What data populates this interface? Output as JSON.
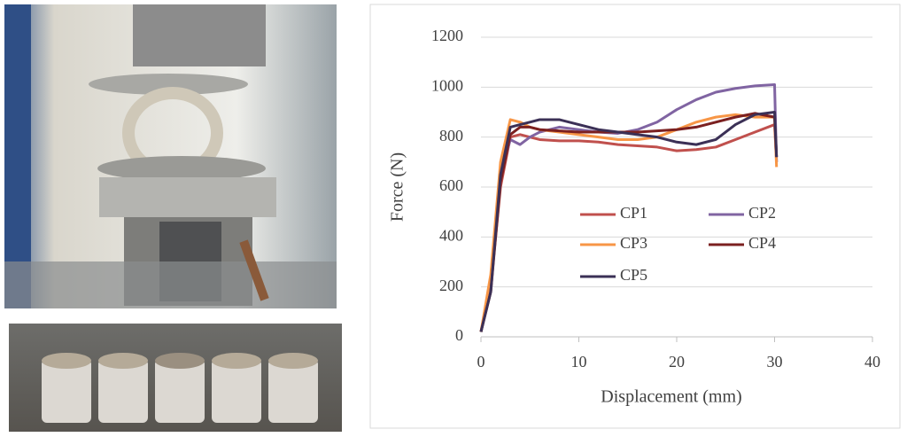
{
  "chart_data": {
    "type": "line",
    "xlabel": "Displacement (mm)",
    "ylabel": "Force (N)",
    "x": [
      0,
      1,
      2,
      3,
      4,
      5,
      6,
      8,
      10,
      12,
      14,
      16,
      18,
      20,
      22,
      24,
      26,
      28,
      30,
      30.2
    ],
    "series": [
      {
        "name": "CP1",
        "color": "#c0504d",
        "values": [
          20,
          200,
          600,
          800,
          810,
          800,
          790,
          785,
          785,
          780,
          770,
          765,
          760,
          745,
          750,
          760,
          790,
          820,
          850,
          700
        ]
      },
      {
        "name": "CP2",
        "color": "#8064a2",
        "values": [
          20,
          200,
          650,
          790,
          770,
          800,
          820,
          840,
          830,
          820,
          815,
          830,
          860,
          910,
          950,
          980,
          995,
          1005,
          1010,
          700
        ]
      },
      {
        "name": "CP3",
        "color": "#f79646",
        "values": [
          20,
          250,
          700,
          870,
          860,
          840,
          830,
          820,
          810,
          800,
          790,
          790,
          800,
          830,
          860,
          880,
          890,
          880,
          880,
          680
        ]
      },
      {
        "name": "CP4",
        "color": "#7b2020",
        "values": [
          20,
          180,
          620,
          810,
          840,
          840,
          830,
          825,
          820,
          820,
          820,
          820,
          825,
          830,
          840,
          860,
          880,
          895,
          880,
          720
        ]
      },
      {
        "name": "CP5",
        "color": "#3b3056",
        "values": [
          20,
          180,
          650,
          840,
          850,
          860,
          870,
          870,
          850,
          830,
          820,
          810,
          800,
          780,
          770,
          790,
          850,
          890,
          900,
          720
        ]
      }
    ],
    "xlim": [
      0,
      40
    ],
    "xticks": [
      0,
      10,
      20,
      30,
      40
    ],
    "ylim": [
      0,
      1200
    ],
    "yticks": [
      0,
      200,
      400,
      600,
      800,
      1000,
      1200
    ],
    "grid": true
  }
}
